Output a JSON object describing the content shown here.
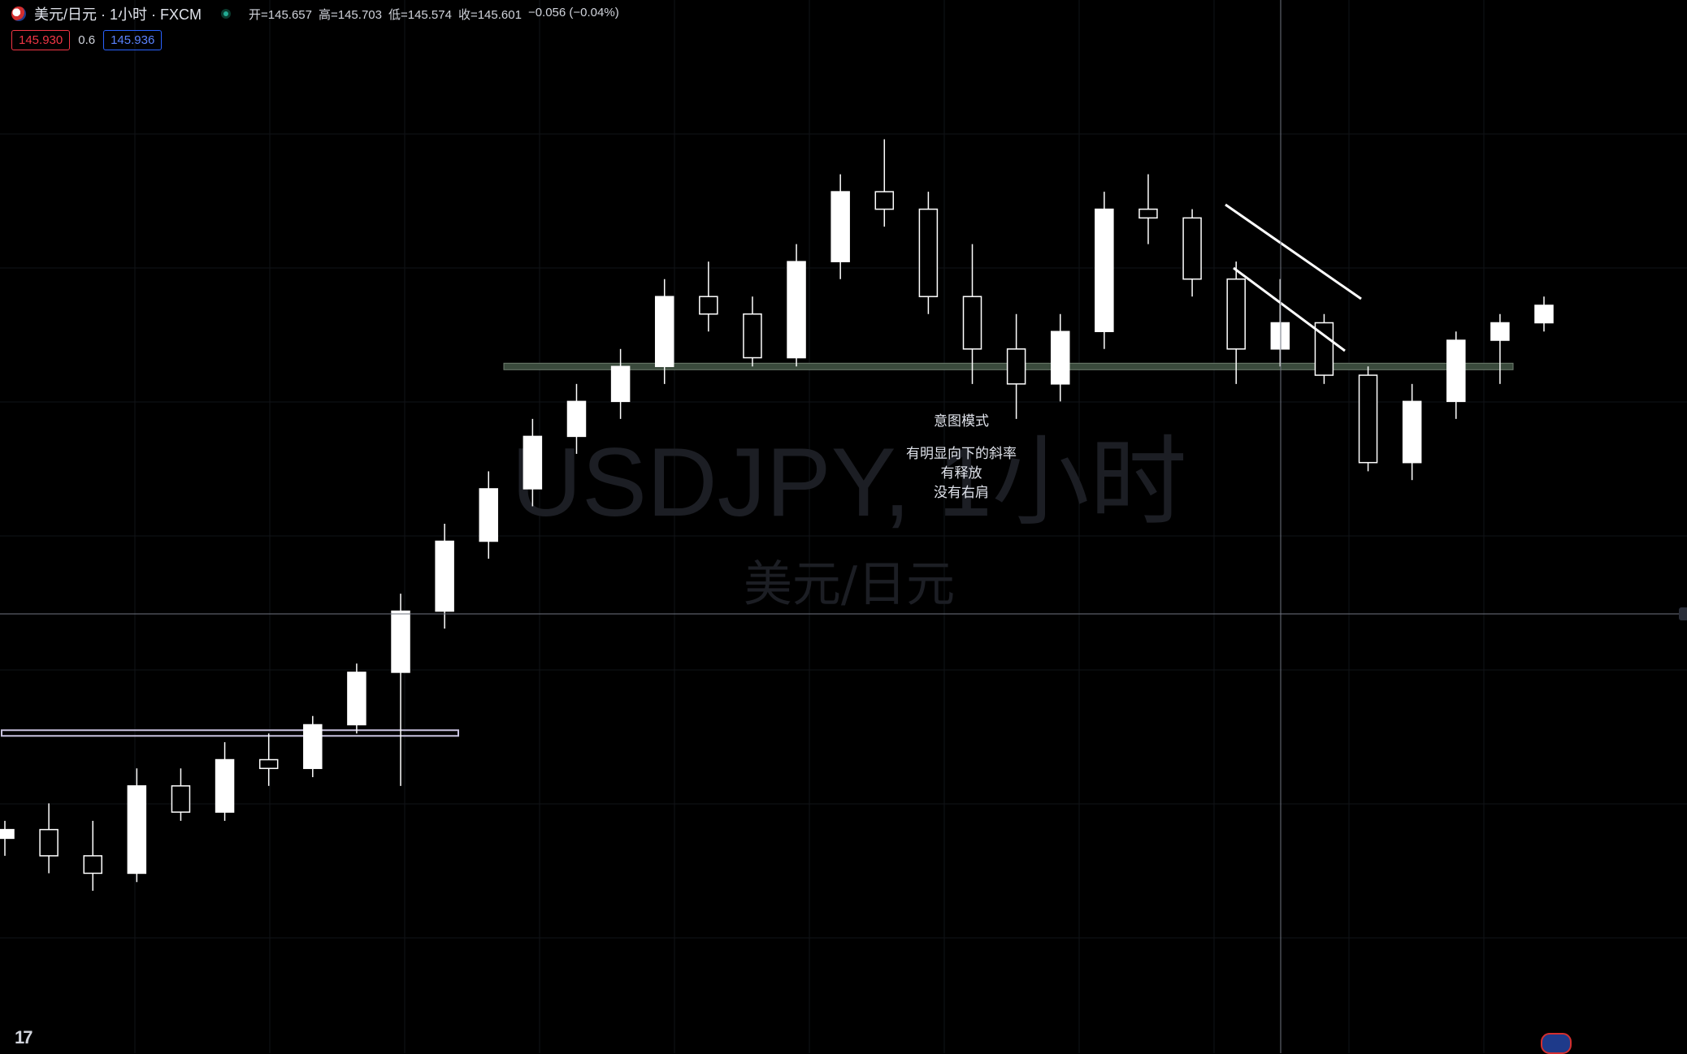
{
  "header": {
    "symbol_title": "美元/日元 · 1小时 · FXCM",
    "ohlc": {
      "open_label": "开=145.657",
      "high_label": "高=145.703",
      "low_label": "低=145.574",
      "close_label": "收=145.601",
      "change_label": "−0.056 (−0.04%)"
    }
  },
  "trade": {
    "sell_price": "145.930",
    "spread": "0.6",
    "buy_price": "145.936"
  },
  "watermark": {
    "line1": "USDJPY, 1小时",
    "line2": "美元/日元"
  },
  "annotation": {
    "title": "意图模式",
    "line1": "有明显向下的斜率",
    "line2": "有释放",
    "line3": "没有右肩"
  },
  "logo_text": "17",
  "colors": {
    "background": "#000000",
    "candle": "#ffffff",
    "support_zone": "#3a4a3c",
    "crosshair": "#6f7480",
    "sell": "#f23645",
    "buy": "#2962ff"
  },
  "chart_data": {
    "type": "candlestick",
    "symbol": "USDJPY",
    "timeframe": "1小时",
    "price_anchors": {
      "upper_zone": 145.6,
      "lower_zone": 143.5
    },
    "series": [
      {
        "x": 0,
        "open": 142.9,
        "high": 143.0,
        "low": 142.8,
        "close": 142.95
      },
      {
        "x": 5,
        "open": 142.95,
        "high": 143.1,
        "low": 142.7,
        "close": 142.8
      },
      {
        "x": 10,
        "open": 142.8,
        "high": 143.0,
        "low": 142.6,
        "close": 142.7
      },
      {
        "x": 15,
        "open": 142.7,
        "high": 143.3,
        "low": 142.65,
        "close": 143.2
      },
      {
        "x": 20,
        "open": 143.2,
        "high": 143.3,
        "low": 143.0,
        "close": 143.05
      },
      {
        "x": 25,
        "open": 143.05,
        "high": 143.45,
        "low": 143.0,
        "close": 143.35
      },
      {
        "x": 30,
        "open": 143.35,
        "high": 143.5,
        "low": 143.2,
        "close": 143.3
      },
      {
        "x": 35,
        "open": 143.3,
        "high": 143.6,
        "low": 143.25,
        "close": 143.55
      },
      {
        "x": 40,
        "open": 143.55,
        "high": 143.9,
        "low": 143.5,
        "close": 143.85
      },
      {
        "x": 45,
        "open": 143.85,
        "high": 144.3,
        "low": 143.2,
        "close": 144.2
      },
      {
        "x": 50,
        "open": 144.2,
        "high": 144.7,
        "low": 144.1,
        "close": 144.6
      },
      {
        "x": 55,
        "open": 144.6,
        "high": 145.0,
        "low": 144.5,
        "close": 144.9
      },
      {
        "x": 60,
        "open": 144.9,
        "high": 145.3,
        "low": 144.8,
        "close": 145.2
      },
      {
        "x": 65,
        "open": 145.2,
        "high": 145.5,
        "low": 145.1,
        "close": 145.4
      },
      {
        "x": 70,
        "open": 145.4,
        "high": 145.7,
        "low": 145.3,
        "close": 145.6
      },
      {
        "x": 75,
        "open": 145.6,
        "high": 146.1,
        "low": 145.5,
        "close": 146.0
      },
      {
        "x": 80,
        "open": 146.0,
        "high": 146.2,
        "low": 145.8,
        "close": 145.9
      },
      {
        "x": 85,
        "open": 145.9,
        "high": 146.0,
        "low": 145.6,
        "close": 145.65
      },
      {
        "x": 90,
        "open": 145.65,
        "high": 146.3,
        "low": 145.6,
        "close": 146.2
      },
      {
        "x": 95,
        "open": 146.2,
        "high": 146.7,
        "low": 146.1,
        "close": 146.6
      },
      {
        "x": 100,
        "open": 146.6,
        "high": 146.9,
        "low": 146.4,
        "close": 146.5
      },
      {
        "x": 105,
        "open": 146.5,
        "high": 146.6,
        "low": 145.9,
        "close": 146.0
      },
      {
        "x": 110,
        "open": 146.0,
        "high": 146.3,
        "low": 145.5,
        "close": 145.7
      },
      {
        "x": 115,
        "open": 145.7,
        "high": 145.9,
        "low": 145.3,
        "close": 145.5
      },
      {
        "x": 120,
        "open": 145.5,
        "high": 145.9,
        "low": 145.4,
        "close": 145.8
      },
      {
        "x": 125,
        "open": 145.8,
        "high": 146.6,
        "low": 145.7,
        "close": 146.5
      },
      {
        "x": 130,
        "open": 146.5,
        "high": 146.7,
        "low": 146.3,
        "close": 146.45
      },
      {
        "x": 135,
        "open": 146.45,
        "high": 146.5,
        "low": 146.0,
        "close": 146.1
      },
      {
        "x": 140,
        "open": 146.1,
        "high": 146.2,
        "low": 145.5,
        "close": 145.7
      },
      {
        "x": 145,
        "open": 145.7,
        "high": 146.1,
        "low": 145.6,
        "close": 145.85
      },
      {
        "x": 150,
        "open": 145.85,
        "high": 145.9,
        "low": 145.5,
        "close": 145.55
      },
      {
        "x": 155,
        "open": 145.55,
        "high": 145.6,
        "low": 145.0,
        "close": 145.05
      },
      {
        "x": 160,
        "open": 145.05,
        "high": 145.5,
        "low": 144.95,
        "close": 145.4
      },
      {
        "x": 165,
        "open": 145.4,
        "high": 145.8,
        "low": 145.3,
        "close": 145.75
      },
      {
        "x": 170,
        "open": 145.75,
        "high": 145.9,
        "low": 145.5,
        "close": 145.85
      },
      {
        "x": 175,
        "open": 145.85,
        "high": 146.0,
        "low": 145.8,
        "close": 145.95
      }
    ]
  }
}
